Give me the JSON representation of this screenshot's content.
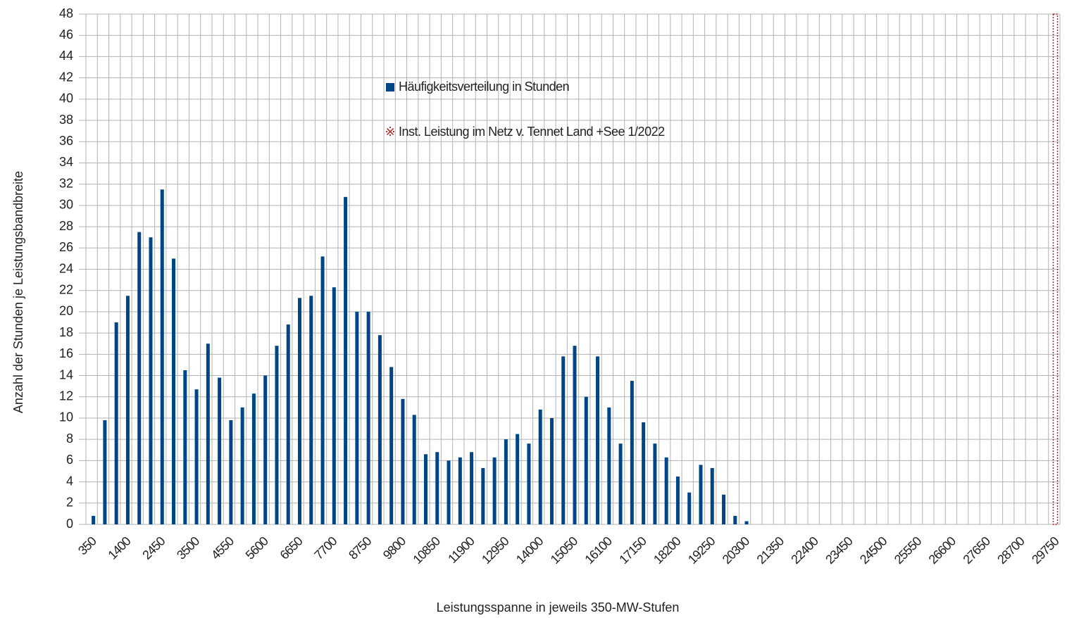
{
  "chart_data": {
    "type": "bar",
    "y_label": "Anzahl der Stunden je Leistungsbandbreite",
    "x_label": "Leistungsspanne in jeweils 350-MW-Stufen",
    "categories": [
      "350",
      null,
      null,
      "1400",
      null,
      null,
      "2450",
      null,
      null,
      "3500",
      null,
      null,
      "4550",
      null,
      null,
      "5600",
      null,
      null,
      "6650",
      null,
      null,
      "7700",
      null,
      null,
      "8750",
      null,
      null,
      "9800",
      null,
      null,
      "10850",
      null,
      null,
      "11900",
      null,
      null,
      "12950",
      null,
      null,
      "14000",
      null,
      null,
      "15050",
      null,
      null,
      "16100",
      null,
      null,
      "17150",
      null,
      null,
      "18200",
      null,
      null,
      "19250",
      null,
      null,
      "20300",
      null,
      null,
      "21350",
      null,
      null,
      "22400",
      null,
      null,
      "23450",
      null,
      null,
      "24500",
      null,
      null,
      "25550",
      null,
      null,
      "26600",
      null,
      null,
      "27650",
      null,
      null,
      "28700",
      null,
      null,
      "29750"
    ],
    "series": [
      {
        "name": "Häufigkeitsverteilung in Stunden",
        "color": "#004586",
        "values": [
          0.8,
          9.8,
          19,
          21.5,
          27.5,
          27,
          31.5,
          25,
          14.5,
          12.7,
          17,
          13.8,
          9.8,
          11,
          12.3,
          14,
          16.8,
          18.8,
          21.3,
          21.5,
          25.2,
          22.3,
          30.8,
          20,
          20,
          17.8,
          14.8,
          11.8,
          10.3,
          6.6,
          6.8,
          6,
          6.3,
          6.8,
          5.3,
          6.3,
          8,
          8.5,
          7.6,
          10.8,
          10,
          15.8,
          16.8,
          12,
          15.8,
          11,
          7.6,
          13.5,
          9.6,
          7.6,
          6.3,
          4.5,
          3,
          5.6,
          5.3,
          2.8,
          0.8,
          0.3,
          0,
          0,
          0,
          0,
          0,
          0,
          0,
          0,
          0,
          0,
          0,
          0,
          0,
          0,
          0,
          0,
          0,
          0,
          0,
          0,
          0,
          0,
          0,
          0,
          0,
          0,
          0
        ]
      },
      {
        "name": "Inst. Leistung im Netz v. Tennet  Land +See 1/2022",
        "color": "#b22222",
        "values": [
          null,
          null,
          null,
          null,
          null,
          null,
          null,
          null,
          null,
          null,
          null,
          null,
          null,
          null,
          null,
          null,
          null,
          null,
          null,
          null,
          null,
          null,
          null,
          null,
          null,
          null,
          null,
          null,
          null,
          null,
          null,
          null,
          null,
          null,
          null,
          null,
          null,
          null,
          null,
          null,
          null,
          null,
          null,
          null,
          null,
          null,
          null,
          null,
          null,
          null,
          null,
          null,
          null,
          null,
          null,
          null,
          null,
          null,
          null,
          null,
          null,
          null,
          null,
          null,
          null,
          null,
          null,
          null,
          null,
          null,
          null,
          null,
          null,
          null,
          null,
          null,
          null,
          null,
          null,
          null,
          null,
          null,
          null,
          null,
          48
        ]
      }
    ],
    "ylim": [
      0,
      48
    ],
    "yticks": [
      0,
      2,
      4,
      6,
      8,
      10,
      12,
      14,
      16,
      18,
      20,
      22,
      24,
      26,
      28,
      30,
      32,
      34,
      36,
      38,
      40,
      42,
      44,
      46,
      48
    ],
    "grid": true
  }
}
